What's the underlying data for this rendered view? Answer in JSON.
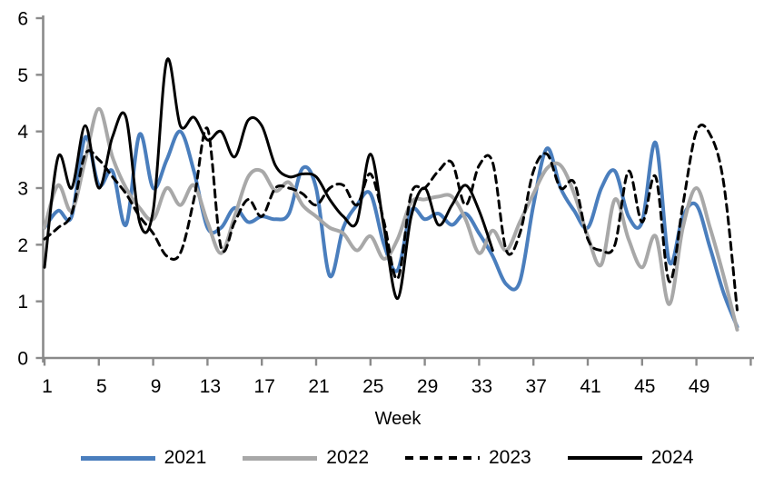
{
  "chart_data": {
    "type": "line",
    "title": "",
    "xlabel": "Week",
    "ylabel": "",
    "x_unit": "week number",
    "xlim": [
      1,
      53
    ],
    "ylim": [
      0,
      6
    ],
    "xticks": [
      1,
      5,
      9,
      13,
      17,
      21,
      25,
      29,
      33,
      37,
      41,
      45,
      49
    ],
    "yticks": [
      0,
      1,
      2,
      3,
      4,
      5,
      6
    ],
    "grid": false,
    "smoothed": true,
    "legend_position": "bottom",
    "axis_color": "#8a8a8a",
    "series": [
      {
        "name": "2021",
        "color": "#4a7ebd",
        "style": "solid",
        "line_width": 4,
        "start_week": 1,
        "values": [
          2.3,
          2.6,
          2.5,
          3.9,
          3.05,
          3.3,
          2.35,
          3.95,
          3.0,
          3.5,
          4.0,
          3.3,
          2.3,
          2.3,
          2.65,
          2.4,
          2.5,
          2.45,
          2.55,
          3.35,
          3.0,
          1.45,
          2.3,
          2.7,
          2.9,
          2.0,
          1.55,
          2.6,
          2.45,
          2.55,
          2.35,
          2.55,
          2.2,
          1.8,
          1.3,
          1.35,
          2.7,
          3.7,
          3.0,
          2.6,
          2.3,
          3.0,
          3.3,
          2.5,
          2.4,
          3.8,
          1.7,
          2.5,
          2.7,
          1.95,
          1.15,
          0.55
        ]
      },
      {
        "name": "2022",
        "color": "#a8a8a8",
        "style": "solid",
        "line_width": 4,
        "start_week": 1,
        "values": [
          2.3,
          3.05,
          2.6,
          3.5,
          4.4,
          3.55,
          3.0,
          2.65,
          2.45,
          3.0,
          2.7,
          3.05,
          2.4,
          1.85,
          2.5,
          3.2,
          3.3,
          2.95,
          3.1,
          2.7,
          2.5,
          2.3,
          2.2,
          1.9,
          2.15,
          1.75,
          2.1,
          2.75,
          2.8,
          2.85,
          2.85,
          2.45,
          1.85,
          2.25,
          1.9,
          2.4,
          2.9,
          3.35,
          3.4,
          2.9,
          2.15,
          1.65,
          2.8,
          2.1,
          1.6,
          2.15,
          0.95,
          2.3,
          3.0,
          2.3,
          1.45,
          0.5
        ]
      },
      {
        "name": "2023",
        "color": "#000000",
        "style": "dashed",
        "line_width": 3,
        "start_week": 1,
        "values": [
          2.1,
          2.3,
          2.55,
          3.6,
          3.5,
          3.2,
          2.9,
          2.5,
          2.2,
          1.8,
          1.85,
          2.8,
          4.05,
          1.95,
          2.4,
          2.8,
          2.5,
          3.0,
          3.0,
          2.9,
          2.7,
          3.0,
          3.05,
          2.7,
          3.25,
          2.4,
          1.4,
          2.9,
          3.0,
          3.3,
          3.45,
          2.7,
          3.4,
          3.45,
          1.9,
          2.2,
          3.3,
          3.6,
          3.0,
          3.1,
          2.1,
          1.9,
          2.0,
          3.3,
          2.4,
          3.2,
          1.35,
          2.7,
          4.0,
          3.95,
          3.1,
          0.85
        ]
      },
      {
        "name": "2024",
        "color": "#000000",
        "style": "solid",
        "line_width": 3,
        "start_week": 1,
        "values": [
          1.6,
          3.55,
          3.0,
          4.1,
          3.0,
          3.9,
          4.25,
          2.4,
          2.6,
          5.25,
          4.1,
          4.25,
          3.85,
          4.0,
          3.55,
          4.2,
          4.1,
          3.4,
          3.2,
          3.25,
          3.2,
          2.8,
          2.5,
          2.4,
          3.6,
          2.3,
          1.05,
          2.5,
          3.0,
          2.35,
          2.7,
          3.05,
          2.6,
          1.9
        ]
      }
    ]
  }
}
